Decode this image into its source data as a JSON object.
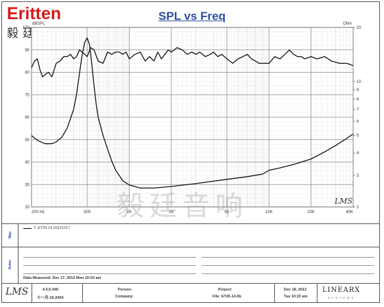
{
  "logo": {
    "brand": "Eritten",
    "cn": "毅廷音响"
  },
  "watermark": "毅廷音响",
  "chart_data": {
    "type": "line",
    "title": "SPL vs Freq",
    "xscale": "log",
    "xlim": [
      200,
      40000
    ],
    "x_ticks": [
      {
        "v": 200,
        "t": "200 Hz"
      },
      {
        "v": 500,
        "t": "500"
      },
      {
        "v": 1000,
        "t": "1K"
      },
      {
        "v": 2000,
        "t": "2K"
      },
      {
        "v": 5000,
        "t": "5K"
      },
      {
        "v": 10000,
        "t": "10K"
      },
      {
        "v": 20000,
        "t": "20K"
      },
      {
        "v": 40000,
        "t": "40K"
      }
    ],
    "y_left": {
      "label": "dBSPL",
      "lim": [
        20,
        100
      ],
      "ticks": [
        20,
        30,
        40,
        50,
        60,
        70,
        80,
        90,
        100
      ]
    },
    "y_right": {
      "label": "Ohm",
      "scale": "log",
      "lim": [
        2,
        20
      ],
      "ticks": [
        2,
        3,
        4,
        5,
        6,
        7,
        8,
        9,
        10,
        20
      ]
    },
    "grid": true,
    "watermark_label": "LMS",
    "series": [
      {
        "name": "SPL",
        "axis": "left",
        "x": [
          200,
          210,
          220,
          230,
          240,
          250,
          265,
          280,
          300,
          320,
          340,
          360,
          380,
          400,
          420,
          440,
          460,
          480,
          500,
          530,
          560,
          600,
          650,
          700,
          750,
          800,
          850,
          900,
          950,
          1000,
          1100,
          1200,
          1300,
          1400,
          1500,
          1600,
          1700,
          1800,
          1900,
          2000,
          2200,
          2400,
          2600,
          2800,
          3000,
          3200,
          3500,
          3800,
          4000,
          4300,
          4600,
          5000,
          5500,
          6000,
          6500,
          7000,
          7500,
          8000,
          8500,
          9000,
          10000,
          11000,
          12000,
          13000,
          14000,
          15000,
          16000,
          17000,
          18000,
          20000,
          22000,
          25000,
          28000,
          32000,
          36000,
          40000
        ],
        "y": [
          82,
          85,
          86,
          81,
          78,
          79,
          80,
          78,
          84,
          85,
          87,
          87,
          88,
          86,
          87,
          90,
          89,
          88,
          87,
          91,
          90,
          85,
          84,
          89,
          88,
          89,
          89,
          88,
          89,
          86,
          88,
          89,
          85,
          87,
          85,
          89,
          86,
          88,
          90,
          89,
          91,
          90,
          88,
          89,
          88,
          89,
          87,
          88,
          89,
          87,
          88,
          86,
          84,
          86,
          87,
          88,
          86,
          85,
          84,
          84,
          84,
          87,
          86,
          88,
          90,
          88,
          87,
          87,
          86,
          87,
          86,
          87,
          85,
          84,
          84,
          83
        ]
      },
      {
        "name": "Impedance",
        "axis": "right",
        "x": [
          200,
          220,
          250,
          280,
          300,
          330,
          360,
          400,
          420,
          440,
          460,
          480,
          500,
          520,
          540,
          560,
          580,
          600,
          650,
          700,
          750,
          800,
          900,
          1000,
          1200,
          1500,
          2000,
          3000,
          5000,
          7000,
          9000,
          10000,
          12000,
          15000,
          20000,
          25000,
          30000,
          35000,
          40000
        ],
        "y": [
          5.0,
          4.7,
          4.5,
          4.5,
          4.6,
          4.9,
          5.5,
          7.0,
          8.5,
          11.0,
          14.0,
          16.5,
          17.5,
          16.0,
          12.5,
          9.5,
          7.5,
          6.3,
          5.0,
          4.2,
          3.6,
          3.2,
          2.8,
          2.65,
          2.55,
          2.55,
          2.6,
          2.7,
          2.85,
          2.95,
          3.05,
          3.2,
          3.3,
          3.45,
          3.7,
          4.05,
          4.4,
          4.75,
          5.1
        ]
      }
    ]
  },
  "panel": {
    "map_label": "Map",
    "notes_label": "Notes",
    "legend_text": "7: ET25-14 20121217",
    "date_measured": "Data Measured: Dec 17, 2012 Mon 10:53 am"
  },
  "footer": {
    "lms_logo": "LMS",
    "version": "4.5.0.349",
    "build_date": "十一月-15-2004",
    "person_label": "Person:",
    "company_label": "Company:",
    "project_label": "Project:",
    "file_label": "File: ET25-14.lib",
    "date": "Dec 18, 2012",
    "time": "Tue 10:23 am",
    "vendor": "LINEARX",
    "vendor_sub": "SYSTEMS"
  }
}
